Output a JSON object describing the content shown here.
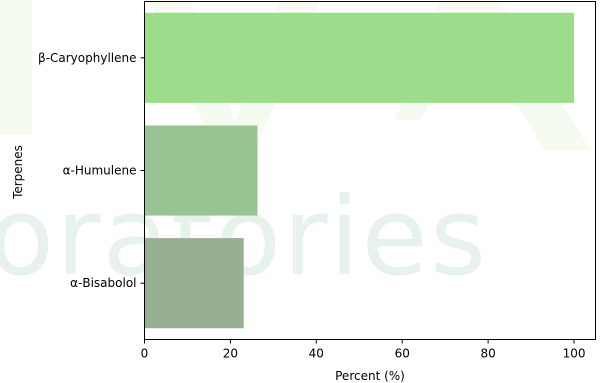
{
  "chart_data": {
    "type": "bar",
    "orientation": "horizontal",
    "categories": [
      "β-Caryophyllene",
      "α-Humulene",
      "α-Bisabolol"
    ],
    "values": [
      100,
      26.3,
      23.1
    ],
    "colors": [
      "#9cdc8a",
      "#96c493",
      "#98b092"
    ],
    "xlabel": "Percent (%)",
    "ylabel": "Terpenes",
    "xlim": [
      0,
      105
    ],
    "xticks": [
      0,
      20,
      40,
      60,
      80,
      100
    ],
    "grid": false,
    "legend": null
  },
  "watermark": {
    "text": "oratories"
  }
}
